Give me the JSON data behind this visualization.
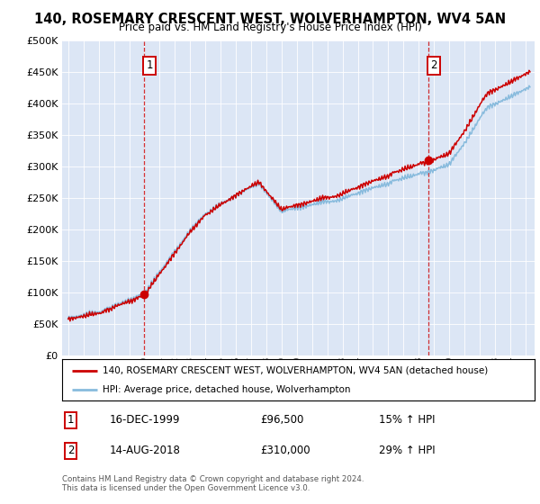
{
  "title": "140, ROSEMARY CRESCENT WEST, WOLVERHAMPTON, WV4 5AN",
  "subtitle": "Price paid vs. HM Land Registry's House Price Index (HPI)",
  "legend_line1": "140, ROSEMARY CRESCENT WEST, WOLVERHAMPTON, WV4 5AN (detached house)",
  "legend_line2": "HPI: Average price, detached house, Wolverhampton",
  "annotation1_label": "1",
  "annotation1_date": "16-DEC-1999",
  "annotation1_price": "£96,500",
  "annotation1_hpi": "15% ↑ HPI",
  "annotation2_label": "2",
  "annotation2_date": "14-AUG-2018",
  "annotation2_price": "£310,000",
  "annotation2_hpi": "29% ↑ HPI",
  "footer": "Contains HM Land Registry data © Crown copyright and database right 2024.\nThis data is licensed under the Open Government Licence v3.0.",
  "hpi_color": "#88bbdd",
  "price_color": "#cc0000",
  "marker_color": "#cc0000",
  "plot_bg": "#dce6f5",
  "ylim": [
    0,
    500000
  ],
  "yticks": [
    0,
    50000,
    100000,
    150000,
    200000,
    250000,
    300000,
    350000,
    400000,
    450000,
    500000
  ],
  "sale1_x": 1999.96,
  "sale1_y": 96500,
  "sale2_x": 2018.62,
  "sale2_y": 310000,
  "vline1_x": 1999.96,
  "vline2_x": 2018.62,
  "xmin": 1995,
  "xmax": 2025
}
